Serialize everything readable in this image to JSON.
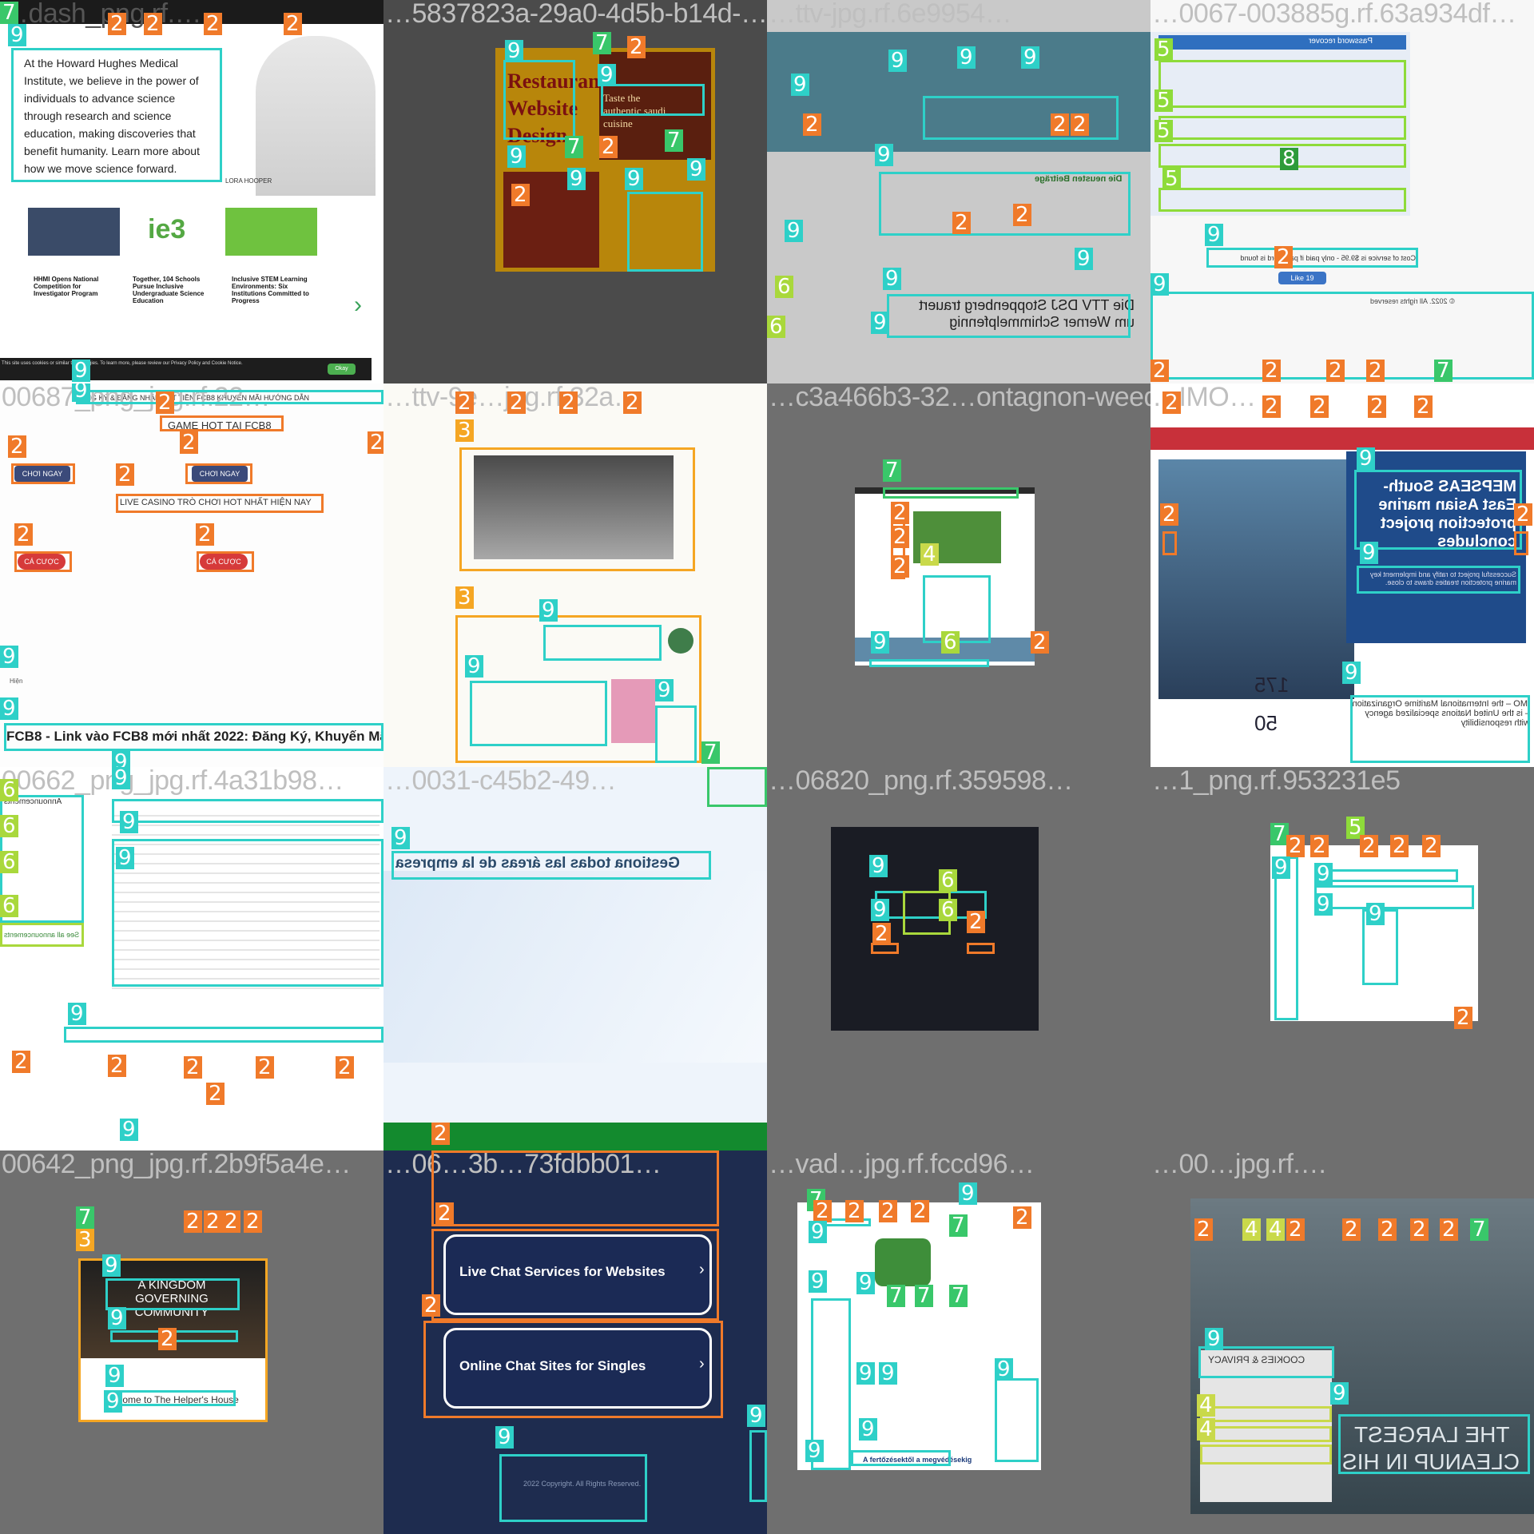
{
  "tiles": [
    {
      "id": "t0",
      "title": "…dash_png.rf.…",
      "headline": "At the Howard Hughes Medical Institute, we believe in the power of individuals to advance science through research and science education, making discoveries that benefit humanity. Learn more about how we move science forward.",
      "person": "LORA HOOPER",
      "cards": [
        "HHMI Opens National Competition for Investigator Program",
        "Together, 104 Schools Pursue Inclusive Undergraduate Science Education",
        "Inclusive STEM Learning Environments: Six Institutions Committed to Progress"
      ],
      "logo": "ie3",
      "cookie": "This site uses cookies or similar technologies. To learn more, please review our Privacy Policy and Cookie Notice.",
      "ok": "Okay"
    },
    {
      "id": "t1",
      "title": "…5837823a-29a0-4d5b-b14d-…",
      "heading": "Restaurant Website Design",
      "tagline": "Taste the authentic saudi cuisine"
    },
    {
      "id": "t2",
      "title": "…ttv-jpg.rf.6e9954…",
      "news_title": "Die TTV DSJ Stoppenberg trauert um Werner Schimmelpfennig",
      "section": "Die neusten Beiträge"
    },
    {
      "id": "t3",
      "title": "…0067-003885g.rf.63a934df…",
      "heading": "Password recover",
      "cost": "Cost of service is $9.95 - only paid if password is found",
      "like": "Like 19",
      "footer": "© 2022. All rights reserved"
    },
    {
      "id": "t4",
      "title": "00687_png_jpg.rf.22…",
      "header": "ĐĂNG KÝ & ĐĂNG NHẬP   RÚT TIỀN FCB8   KHUYẾN MÃI   HƯỚNG DẪN",
      "game_hot": "GAME HOT TẠI FCB8",
      "choi_ngay": "CHƠI NGAY",
      "live": "LIVE CASINO TRÒ CHƠI HOT NHẤT HIỆN NAY",
      "cuoc": "CÁ CƯỢC",
      "small": "Hiện",
      "footer_title": "FCB8 - Link vào FCB8 mới nhất 2022: Đăng Ký, Khuyến Mãi, I"
    },
    {
      "id": "t5",
      "title": "…ttv-9e…jpg.rf.32a…"
    },
    {
      "id": "t6",
      "title": "…c3a466b3-32…ontagnon-weed…"
    },
    {
      "id": "t7",
      "title": "…IMO…",
      "heading": "MEPSEAS South-East Asian marine protection project concludes",
      "sub": "Successful project to ratify and implement key marine protection treaties draws to close.",
      "imo": "IMO – the International Maritime Organization – is the United Nations specialized agency with responsibility",
      "stat1": "175",
      "stat2": "50"
    },
    {
      "id": "t8",
      "title": "00662_png_jpg.rf.4a31b98…",
      "announcements": "Announcements",
      "see_all": "See all announcements"
    },
    {
      "id": "t9",
      "title": "…0031-c45b2-49…",
      "heading": "Gestiona todas las áreas de la empresa"
    },
    {
      "id": "t10",
      "title": "…06820_png.rf.359598…"
    },
    {
      "id": "t11",
      "title": "…1_png.rf.953231e5"
    },
    {
      "id": "t12",
      "title": "00642_png_jpg.rf.2b9f5a4e…",
      "heading": "A KINGDOM GOVERNING COMMUNITY",
      "welcome": "elcome to The Helper's House"
    },
    {
      "id": "t13",
      "title": "…06…3b…73fdbb01…",
      "item1": "Live Chat Services for Websites",
      "item2": "Online Chat Sites for Singles",
      "footer": "2022 Copyright. All Rights Reserved."
    },
    {
      "id": "t14",
      "title": "…vad…jpg.rf.fccd96…",
      "caption": "A fertőzésektől a megvédésekig"
    },
    {
      "id": "t15",
      "title": "…00…jpg.rf.…",
      "cookies": "COOKIES & PRIVACY",
      "headline1": "THE LARGEST",
      "headline2": "CLEANUP IN HIS"
    }
  ]
}
